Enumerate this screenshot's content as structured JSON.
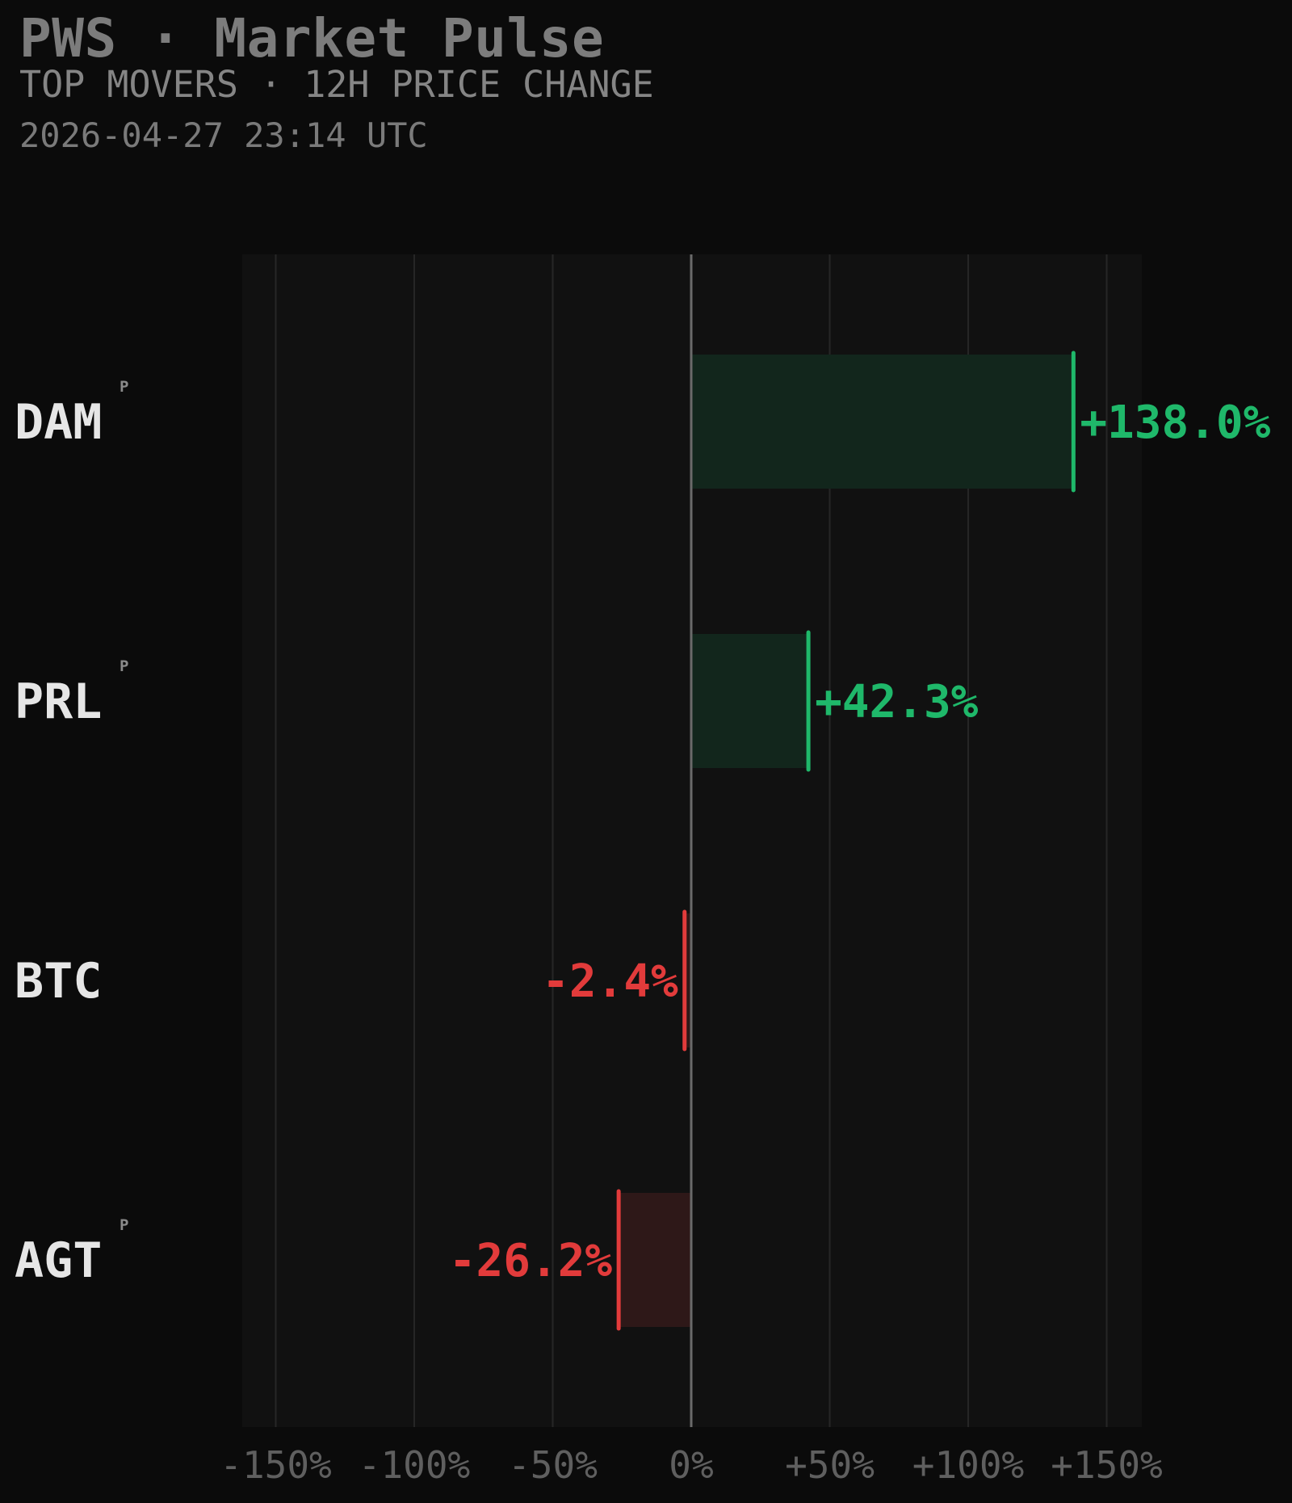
{
  "header": {
    "title": "PWS · Market Pulse",
    "subtitle": "TOP MOVERS · 12H PRICE CHANGE",
    "timestamp": "2026-04-27 23:14 UTC"
  },
  "colors": {
    "positive": "#1fb86a",
    "positive_fill": "#12261c",
    "negative": "#e23b3b",
    "negative_fill": "#2e1818",
    "plot_bg": "#111111",
    "grid": "#262626",
    "zero_line": "#6a6a6a"
  },
  "chart_data": {
    "type": "bar",
    "orientation": "horizontal",
    "title": "PWS · Market Pulse",
    "subtitle": "TOP MOVERS · 12H PRICE CHANGE",
    "xlabel": "",
    "ylabel": "",
    "xlim": [
      -162,
      162
    ],
    "ticks": [
      -150,
      -100,
      -50,
      0,
      50,
      100,
      150
    ],
    "tick_labels": [
      "-150%",
      "-100%",
      "-50%",
      "0%",
      "+50%",
      "+100%",
      "+150%"
    ],
    "grid": true,
    "categories": [
      "DAM",
      "PRL",
      "BTC",
      "AGT"
    ],
    "badges": [
      "P",
      "P",
      "",
      "P"
    ],
    "values": [
      138.0,
      42.3,
      -2.4,
      -26.2
    ],
    "value_labels": [
      "+138.0%",
      "+42.3%",
      "-2.4%",
      "-26.2%"
    ]
  }
}
